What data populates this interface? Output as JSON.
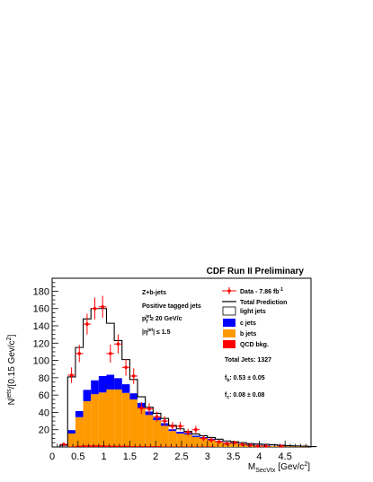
{
  "chart_data": {
    "type": "bar",
    "title": "CDF Run II Preliminary",
    "xlabel_main": "M",
    "xlabel_sub": "SecVtx",
    "xlabel_units": "[Gev/c",
    "xlabel_sup": "2",
    "xlabel_close": "]",
    "ylabel_main": "N",
    "ylabel_sup": "jets",
    "ylabel_units": "/[0.15 Gev/c",
    "ylabel_sup2": "2",
    "ylabel_close": "]",
    "xlim": [
      0,
      5.0
    ],
    "ylim": [
      0,
      195
    ],
    "bin_width": 0.15,
    "bin_start": 0.15,
    "x_ticks": [
      0,
      0.5,
      1,
      1.5,
      2,
      2.5,
      3,
      3.5,
      4,
      4.5
    ],
    "x_tick_labels": [
      "0",
      "0.5",
      "1",
      "1.5",
      "2",
      "2.5",
      "3",
      "3.5",
      "4",
      "4.5"
    ],
    "y_ticks": [
      20,
      40,
      60,
      80,
      100,
      120,
      140,
      160,
      180
    ],
    "y_tick_labels": [
      "20",
      "40",
      "60",
      "80",
      "100",
      "120",
      "140",
      "160",
      "180"
    ],
    "stack_series": [
      {
        "name": "QCD bkg.",
        "color": "#ff0000",
        "values": [
          0,
          0.5,
          1.5,
          2,
          2,
          2,
          1.5,
          1.5,
          1.5,
          1,
          1,
          1,
          1,
          0.5,
          0.5,
          0.5,
          0.5,
          0.5,
          0.5,
          0.5,
          0,
          0,
          0,
          0,
          0,
          0,
          0,
          0,
          0,
          0,
          0,
          0,
          0
        ]
      },
      {
        "name": "b jets",
        "color": "#ff9900",
        "values": [
          0,
          15,
          33,
          51,
          59,
          61,
          65,
          65,
          61,
          54,
          44,
          36,
          30,
          24,
          18,
          15,
          14,
          11,
          10,
          8,
          6,
          5,
          4,
          3,
          2.5,
          2,
          1.5,
          1,
          1,
          0.8,
          0.6,
          0.5,
          0.3
        ]
      },
      {
        "name": "c jets",
        "color": "#0000ff",
        "values": [
          0,
          4,
          7,
          13,
          16,
          19,
          17,
          13,
          10,
          7,
          6,
          4,
          3,
          3,
          2,
          2,
          1.5,
          1.5,
          1,
          1,
          1,
          0.5,
          0.5,
          0.5,
          0.5,
          0.5,
          0.3,
          0.2,
          0.2,
          0.2,
          0.2,
          0.1,
          0.1
        ]
      },
      {
        "name": "light jets",
        "color": "#ffffff",
        "values": [
          0,
          0,
          0,
          0,
          0,
          0,
          0,
          0,
          0,
          0,
          0,
          0,
          0,
          0,
          0,
          0,
          0,
          0,
          0,
          0,
          0,
          0,
          0,
          0,
          0,
          0,
          0,
          0,
          0,
          0,
          0,
          0,
          0
        ]
      }
    ],
    "total_prediction": [
      2,
      81,
      115,
      148,
      160,
      160,
      143,
      123,
      101,
      78,
      58,
      46,
      39,
      33,
      25,
      21,
      18,
      15,
      13,
      11,
      9,
      7,
      6,
      5,
      4,
      3.5,
      3,
      2.5,
      2,
      1.5,
      1.2,
      1,
      0.5
    ],
    "data_points": [
      {
        "x": 0.225,
        "y": 3,
        "err": 1.7
      },
      {
        "x": 0.375,
        "y": 83,
        "err": 9
      },
      {
        "x": 0.525,
        "y": 108,
        "err": 10
      },
      {
        "x": 0.675,
        "y": 142,
        "err": 12
      },
      {
        "x": 0.825,
        "y": 160,
        "err": 12.6
      },
      {
        "x": 0.975,
        "y": 162,
        "err": 12.7
      },
      {
        "x": 1.125,
        "y": 108,
        "err": 10.4
      },
      {
        "x": 1.275,
        "y": 119,
        "err": 10.9
      },
      {
        "x": 1.425,
        "y": 92,
        "err": 9.6
      },
      {
        "x": 1.575,
        "y": 82,
        "err": 9
      },
      {
        "x": 1.725,
        "y": 45,
        "err": 6.7
      },
      {
        "x": 1.875,
        "y": 44,
        "err": 6.6
      },
      {
        "x": 2.025,
        "y": 35,
        "err": 5.9
      },
      {
        "x": 2.175,
        "y": 30,
        "err": 5.5
      },
      {
        "x": 2.325,
        "y": 24,
        "err": 4.9
      },
      {
        "x": 2.475,
        "y": 24,
        "err": 4.9
      },
      {
        "x": 2.625,
        "y": 17,
        "err": 4.1
      },
      {
        "x": 2.775,
        "y": 20,
        "err": 4.5
      },
      {
        "x": 2.925,
        "y": 10,
        "err": 3.2
      },
      {
        "x": 3.075,
        "y": 8,
        "err": 2.8
      },
      {
        "x": 3.225,
        "y": 6,
        "err": 2.4
      },
      {
        "x": 3.375,
        "y": 4,
        "err": 2
      },
      {
        "x": 3.525,
        "y": 5,
        "err": 2.2
      },
      {
        "x": 3.675,
        "y": 3,
        "err": 1.7
      },
      {
        "x": 3.825,
        "y": 2,
        "err": 1.4
      },
      {
        "x": 3.975,
        "y": 1,
        "err": 1
      },
      {
        "x": 4.125,
        "y": 1,
        "err": 1
      },
      {
        "x": 4.425,
        "y": 1,
        "err": 1
      }
    ],
    "annotations": {
      "line1": "Z+b-jets",
      "line2": "Positive tagged jets",
      "pt_main": "p",
      "pt_sub": "T",
      "pt_sup": "jet",
      "pt_rest": " ≥ 20 GeV/c",
      "eta_open": "|η",
      "eta_sup": "jet",
      "eta_rest": "| ≤ 1.5",
      "total_jets": "Total Jets: 1327",
      "fb_main": "f",
      "fb_sub": "b",
      "fb_rest": ": 0.53 ± 0.05",
      "fc_main": "f",
      "fc_sub": "c",
      "fc_rest": ": 0.08 ± 0.08"
    },
    "legend": {
      "placement": "top-right",
      "data_label": "Data  - 7.86 fb",
      "data_sup": "-1",
      "total_label": "Total Prediction",
      "light_label": "light jets",
      "c_label": "c jets",
      "b_label": "b jets",
      "qcd_label": "QCD bkg.",
      "data_color": "#ff0000",
      "total_color": "#000000",
      "light_color": "#ffffff",
      "c_color": "#0000ff",
      "b_color": "#ff9900",
      "qcd_color": "#ff0000"
    }
  }
}
